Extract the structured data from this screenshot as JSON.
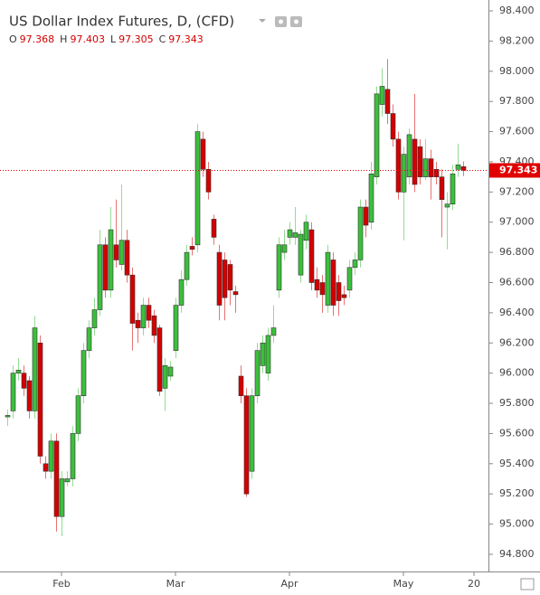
{
  "chart_data": {
    "type": "candlestick",
    "title": "US Dollar Index Futures, D, (CFD)",
    "legend_keys": [
      "O",
      "H",
      "L",
      "C"
    ],
    "up_color": "#3cbf3c",
    "down_color": "#d40000",
    "price_line_color": "#e00000",
    "categories": [
      null,
      null,
      null,
      null,
      null,
      null,
      null,
      null,
      null,
      null,
      "Feb",
      null,
      null,
      null,
      null,
      null,
      null,
      null,
      null,
      null,
      null,
      null,
      null,
      null,
      null,
      null,
      null,
      null,
      null,
      null,
      null,
      "Mar",
      null,
      null,
      null,
      null,
      null,
      null,
      null,
      null,
      null,
      null,
      null,
      null,
      null,
      null,
      null,
      null,
      null,
      null,
      null,
      null,
      "Apr",
      null,
      null,
      null,
      null,
      null,
      null,
      null,
      null,
      null,
      null,
      null,
      null,
      null,
      null,
      null,
      null,
      null,
      null,
      null,
      null,
      "May",
      null,
      null,
      null,
      null,
      null,
      null,
      null,
      null,
      null,
      null,
      null,
      null,
      "20"
    ],
    "open": [
      95.71,
      95.75,
      96.0,
      96.0,
      95.95,
      95.75,
      96.2,
      95.4,
      95.35,
      95.55,
      95.05,
      95.28,
      95.3,
      95.6,
      95.85,
      96.15,
      96.3,
      96.42,
      96.85,
      96.55,
      96.85,
      96.72,
      96.88,
      96.65,
      96.35,
      96.3,
      96.45,
      96.38,
      96.3,
      95.9,
      95.98,
      96.15,
      96.45,
      96.62,
      96.84,
      96.85,
      97.55,
      97.35,
      97.02,
      96.8,
      96.75,
      96.72,
      96.54,
      95.98,
      95.85,
      95.35,
      95.85,
      96.05,
      96.0,
      96.25,
      96.55,
      96.8,
      96.9,
      96.9,
      96.65,
      96.88,
      96.95,
      96.62,
      96.6,
      96.45,
      96.75,
      96.6,
      96.52,
      96.55,
      96.7,
      96.75,
      97.1,
      97.0,
      97.3,
      97.78,
      97.88,
      97.72,
      97.55,
      97.2,
      97.3,
      97.55,
      97.5,
      97.3,
      97.42,
      97.35,
      97.3,
      97.1,
      97.12,
      97.35,
      97.368,
      null,
      null
    ],
    "high": [
      95.76,
      96.05,
      96.1,
      96.05,
      95.98,
      96.38,
      96.25,
      95.45,
      95.6,
      95.6,
      95.35,
      95.35,
      95.65,
      95.9,
      96.2,
      96.35,
      96.5,
      96.95,
      96.9,
      97.1,
      97.15,
      97.25,
      96.95,
      96.7,
      96.4,
      96.5,
      96.5,
      96.42,
      96.32,
      96.1,
      96.08,
      96.5,
      96.68,
      96.85,
      96.9,
      97.65,
      97.6,
      97.4,
      97.05,
      96.85,
      96.8,
      96.75,
      96.58,
      96.05,
      95.9,
      95.9,
      96.2,
      96.25,
      96.3,
      96.45,
      96.9,
      96.95,
      97.0,
      97.1,
      96.95,
      97.05,
      97.0,
      96.7,
      96.65,
      96.85,
      96.8,
      96.65,
      96.58,
      96.75,
      96.8,
      97.15,
      97.15,
      97.4,
      97.9,
      98.02,
      98.08,
      97.78,
      97.6,
      97.5,
      97.62,
      97.85,
      97.55,
      97.55,
      97.48,
      97.4,
      97.35,
      97.2,
      97.38,
      97.52,
      97.403,
      null,
      null
    ],
    "low": [
      95.65,
      95.7,
      95.95,
      95.85,
      95.7,
      95.7,
      95.4,
      95.3,
      95.3,
      94.95,
      94.92,
      95.25,
      95.25,
      95.55,
      95.8,
      96.1,
      96.25,
      96.38,
      96.5,
      96.5,
      96.7,
      96.68,
      96.6,
      96.15,
      96.2,
      96.25,
      96.3,
      96.2,
      95.85,
      95.75,
      95.95,
      96.1,
      96.4,
      96.58,
      96.78,
      96.8,
      97.3,
      97.15,
      96.85,
      96.35,
      96.35,
      96.45,
      96.4,
      95.8,
      95.18,
      95.3,
      95.8,
      96.0,
      95.95,
      96.2,
      96.5,
      96.75,
      96.85,
      96.85,
      96.6,
      96.82,
      96.55,
      96.5,
      96.4,
      96.4,
      96.38,
      96.38,
      96.45,
      96.5,
      96.65,
      96.7,
      96.9,
      96.95,
      97.25,
      97.7,
      97.65,
      97.5,
      97.15,
      96.88,
      97.25,
      97.2,
      97.25,
      97.28,
      97.15,
      97.25,
      96.9,
      96.82,
      97.08,
      97.3,
      97.305,
      null,
      null
    ],
    "close": [
      95.72,
      96.0,
      96.02,
      95.9,
      95.75,
      96.3,
      95.45,
      95.35,
      95.55,
      95.05,
      95.3,
      95.3,
      95.6,
      95.85,
      96.15,
      96.3,
      96.42,
      96.85,
      96.55,
      96.95,
      96.75,
      96.88,
      96.65,
      96.33,
      96.3,
      96.45,
      96.35,
      96.25,
      95.88,
      96.05,
      96.04,
      96.45,
      96.62,
      96.8,
      96.82,
      97.6,
      97.35,
      97.2,
      96.9,
      96.45,
      96.5,
      96.55,
      96.52,
      95.85,
      95.2,
      95.85,
      96.15,
      96.2,
      96.25,
      96.3,
      96.85,
      96.85,
      96.95,
      96.93,
      96.92,
      97.0,
      96.6,
      96.55,
      96.52,
      96.8,
      96.45,
      96.48,
      96.5,
      96.7,
      96.75,
      97.1,
      96.98,
      97.32,
      97.85,
      97.9,
      97.72,
      97.55,
      97.2,
      97.45,
      97.58,
      97.25,
      97.3,
      97.42,
      97.3,
      97.3,
      97.15,
      97.12,
      97.32,
      97.38,
      97.343,
      null,
      null
    ],
    "ylim": [
      94.686,
      98.472
    ],
    "yticks": [
      {
        "value": 94.8,
        "label": "94.800"
      },
      {
        "value": 95.0,
        "label": "95.000"
      },
      {
        "value": 95.2,
        "label": "95.200"
      },
      {
        "value": 95.4,
        "label": "95.400"
      },
      {
        "value": 95.6,
        "label": "95.600"
      },
      {
        "value": 95.8,
        "label": "95.800"
      },
      {
        "value": 96.0,
        "label": "96.000"
      },
      {
        "value": 96.2,
        "label": "96.200"
      },
      {
        "value": 96.4,
        "label": "96.400"
      },
      {
        "value": 96.6,
        "label": "96.600"
      },
      {
        "value": 96.8,
        "label": "96.800"
      },
      {
        "value": 97.0,
        "label": "97.000"
      },
      {
        "value": 97.2,
        "label": "97.200"
      },
      {
        "value": 97.4,
        "label": "97.400"
      },
      {
        "value": 97.6,
        "label": "97.600"
      },
      {
        "value": 97.8,
        "label": "97.800"
      },
      {
        "value": 98.0,
        "label": "98.000"
      },
      {
        "value": 98.2,
        "label": "98.200"
      },
      {
        "value": 98.4,
        "label": "98.400"
      }
    ],
    "grid": false
  }
}
